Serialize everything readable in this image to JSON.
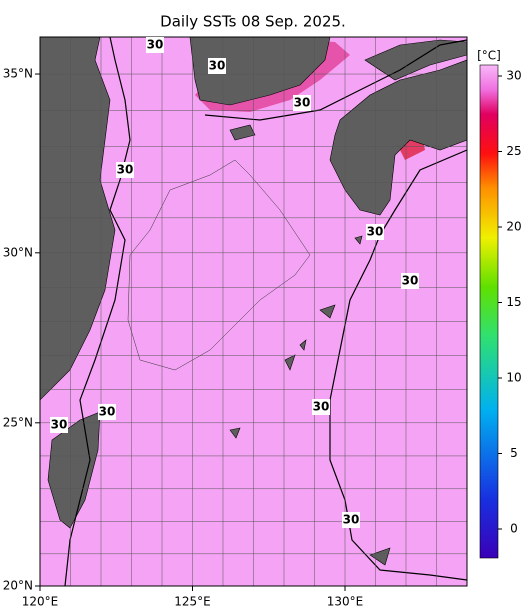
{
  "title": "Daily SSTs 08 Sep. 2025.",
  "map": {
    "lon_range": [
      120,
      134
    ],
    "lat_range": [
      20,
      36
    ],
    "lon_ticks": [
      {
        "value": 120,
        "label": "120°E"
      },
      {
        "value": 125,
        "label": "125°E"
      },
      {
        "value": 130,
        "label": "130°E"
      }
    ],
    "lat_ticks": [
      {
        "value": 20,
        "label": "20°N"
      },
      {
        "value": 25,
        "label": "25°N"
      },
      {
        "value": 30,
        "label": "30°N"
      },
      {
        "value": 35,
        "label": "35°N"
      }
    ],
    "contour_labels": [
      "30",
      "30",
      "30",
      "30",
      "30",
      "30",
      "30",
      "30",
      "30",
      "30"
    ]
  },
  "colorbar": {
    "unit": "[°C]",
    "ticks": [
      0,
      5,
      10,
      15,
      20,
      25,
      30
    ]
  }
}
